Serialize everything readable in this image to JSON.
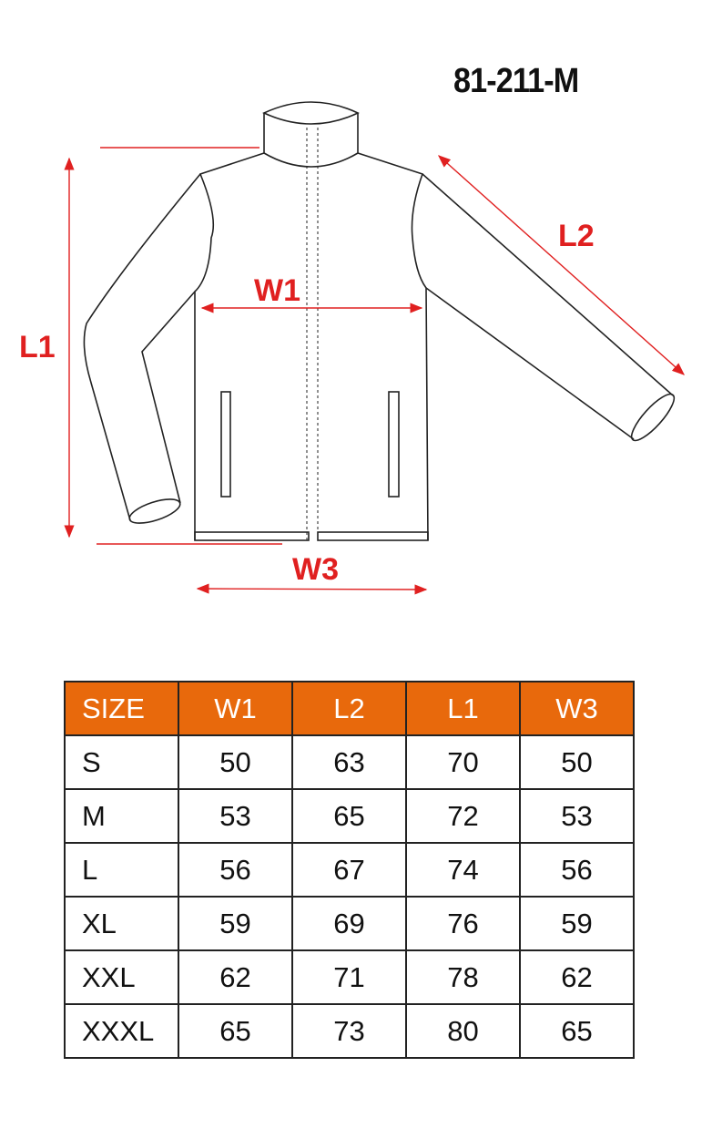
{
  "title": "81-211-M",
  "labels": {
    "l1": "L1",
    "l2": "L2",
    "w1": "W1",
    "w3": "W3"
  },
  "colors": {
    "accent": "#e8690c",
    "measure": "#e02020"
  },
  "table": {
    "headers": [
      "SIZE",
      "W1",
      "L2",
      "L1",
      "W3"
    ],
    "rows": [
      [
        "S",
        "50",
        "63",
        "70",
        "50"
      ],
      [
        "M",
        "53",
        "65",
        "72",
        "53"
      ],
      [
        "L",
        "56",
        "67",
        "74",
        "56"
      ],
      [
        "XL",
        "59",
        "69",
        "76",
        "59"
      ],
      [
        "XXL",
        "62",
        "71",
        "78",
        "62"
      ],
      [
        "XXXL",
        "65",
        "73",
        "80",
        "65"
      ]
    ]
  }
}
